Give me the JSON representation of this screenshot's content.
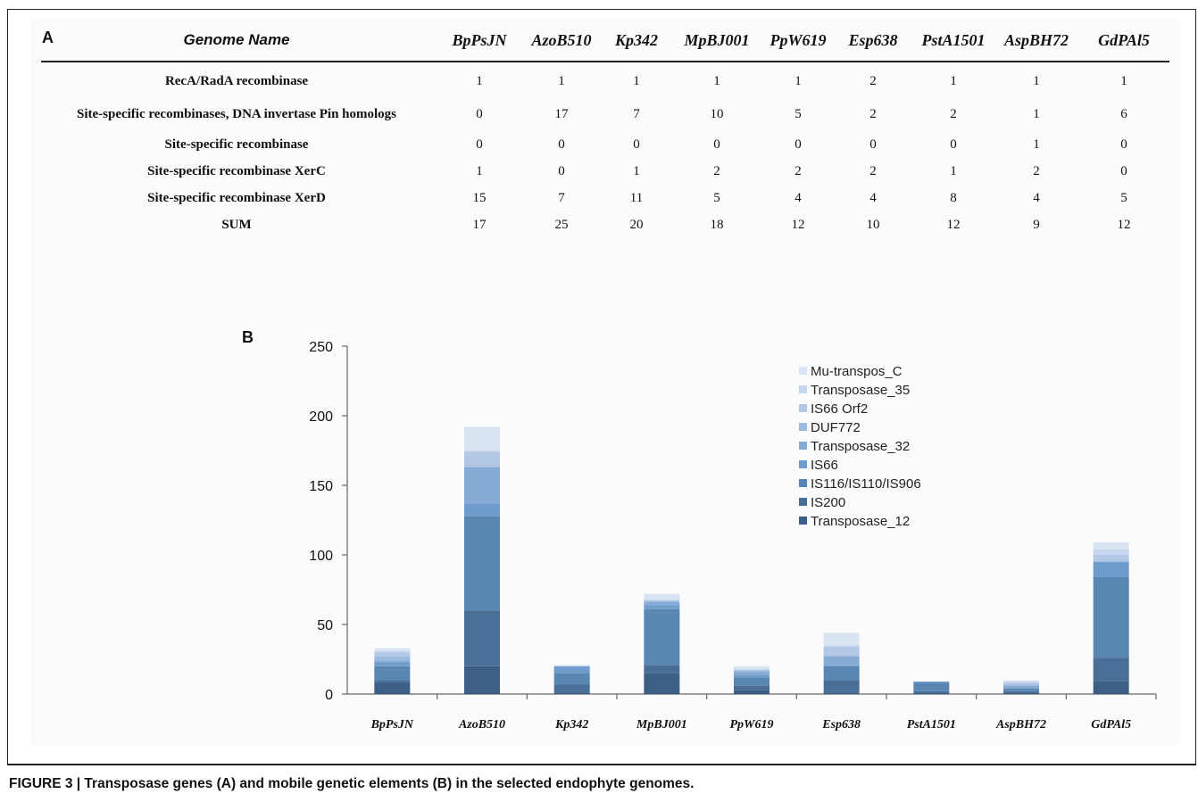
{
  "panel_a": {
    "letter": "A",
    "header_label": "Genome Name",
    "genomes": [
      "BpPsJN",
      "AzoB510",
      "Kp342",
      "MpBJ001",
      "PpW619",
      "Esp638",
      "PstA1501",
      "AspBH72",
      "GdPAl5"
    ],
    "rows": [
      {
        "label": "RecA/RadA recombinase",
        "values": [
          "1",
          "1",
          "1",
          "1",
          "1",
          "2",
          "1",
          "1",
          "1"
        ]
      },
      {
        "label": "Site-specific recombinases, DNA invertase Pin homologs",
        "values": [
          "0",
          "17",
          "7",
          "10",
          "5",
          "2",
          "2",
          "1",
          "6"
        ]
      },
      {
        "label": "Site-specific recombinase",
        "values": [
          "0",
          "0",
          "0",
          "0",
          "0",
          "0",
          "0",
          "1",
          "0"
        ]
      },
      {
        "label": "Site-specific recombinase XerC",
        "values": [
          "1",
          "0",
          "1",
          "2",
          "2",
          "2",
          "1",
          "2",
          "0"
        ]
      },
      {
        "label": "Site-specific recombinase XerD",
        "values": [
          "15",
          "7",
          "11",
          "5",
          "4",
          "4",
          "8",
          "4",
          "5"
        ]
      },
      {
        "label": "SUM",
        "values": [
          "17",
          "25",
          "20",
          "18",
          "12",
          "10",
          "12",
          "9",
          "12"
        ]
      }
    ]
  },
  "chart_data": {
    "type": "bar",
    "letter": "B",
    "stacked": true,
    "categories": [
      "BpPsJN",
      "AzoB510",
      "Kp342",
      "MpBJ001",
      "PpW619",
      "Esp638",
      "PstA1501",
      "AspBH72",
      "GdPAl5"
    ],
    "ylim": [
      0,
      250
    ],
    "yticks": [
      "0",
      "50",
      "100",
      "150",
      "200",
      "250"
    ],
    "legend_position": "top-right",
    "series": [
      {
        "name": "Transposase_12",
        "color": "#3d5f86",
        "values": [
          8,
          20,
          1,
          15,
          3,
          1,
          1,
          1,
          9
        ]
      },
      {
        "name": "IS200",
        "color": "#4a6f97",
        "values": [
          2,
          40,
          6,
          6,
          3,
          9,
          1,
          1,
          17
        ]
      },
      {
        "name": "IS116/IS110/IS906",
        "color": "#5a86b4",
        "values": [
          10,
          68,
          8,
          40,
          6,
          10,
          6,
          2,
          58
        ]
      },
      {
        "name": "IS66",
        "color": "#6f9ccb",
        "values": [
          3,
          9,
          5,
          3,
          2,
          1,
          1,
          1,
          11
        ]
      },
      {
        "name": "Transposase_32",
        "color": "#86acd6",
        "values": [
          1,
          26,
          0,
          2,
          2,
          6,
          0,
          1,
          0
        ]
      },
      {
        "name": "DUF772",
        "color": "#9dbbde",
        "values": [
          3,
          1,
          0,
          1,
          1,
          1,
          0,
          1,
          1
        ]
      },
      {
        "name": "IS66 Orf2",
        "color": "#b2c8e4",
        "values": [
          3,
          10,
          0,
          0,
          0,
          6,
          0,
          1,
          4
        ]
      },
      {
        "name": "Transposase_35",
        "color": "#c6d6ec",
        "values": [
          1,
          1,
          0,
          1,
          1,
          1,
          0,
          1,
          4
        ]
      },
      {
        "name": "Mu-transpos_C",
        "color": "#d9e4f2",
        "values": [
          2,
          17,
          1,
          4,
          2,
          9,
          0,
          1,
          5
        ]
      }
    ]
  },
  "caption": "FIGURE 3 | Transposase genes (A) and mobile genetic elements (B) in the selected endophyte genomes."
}
